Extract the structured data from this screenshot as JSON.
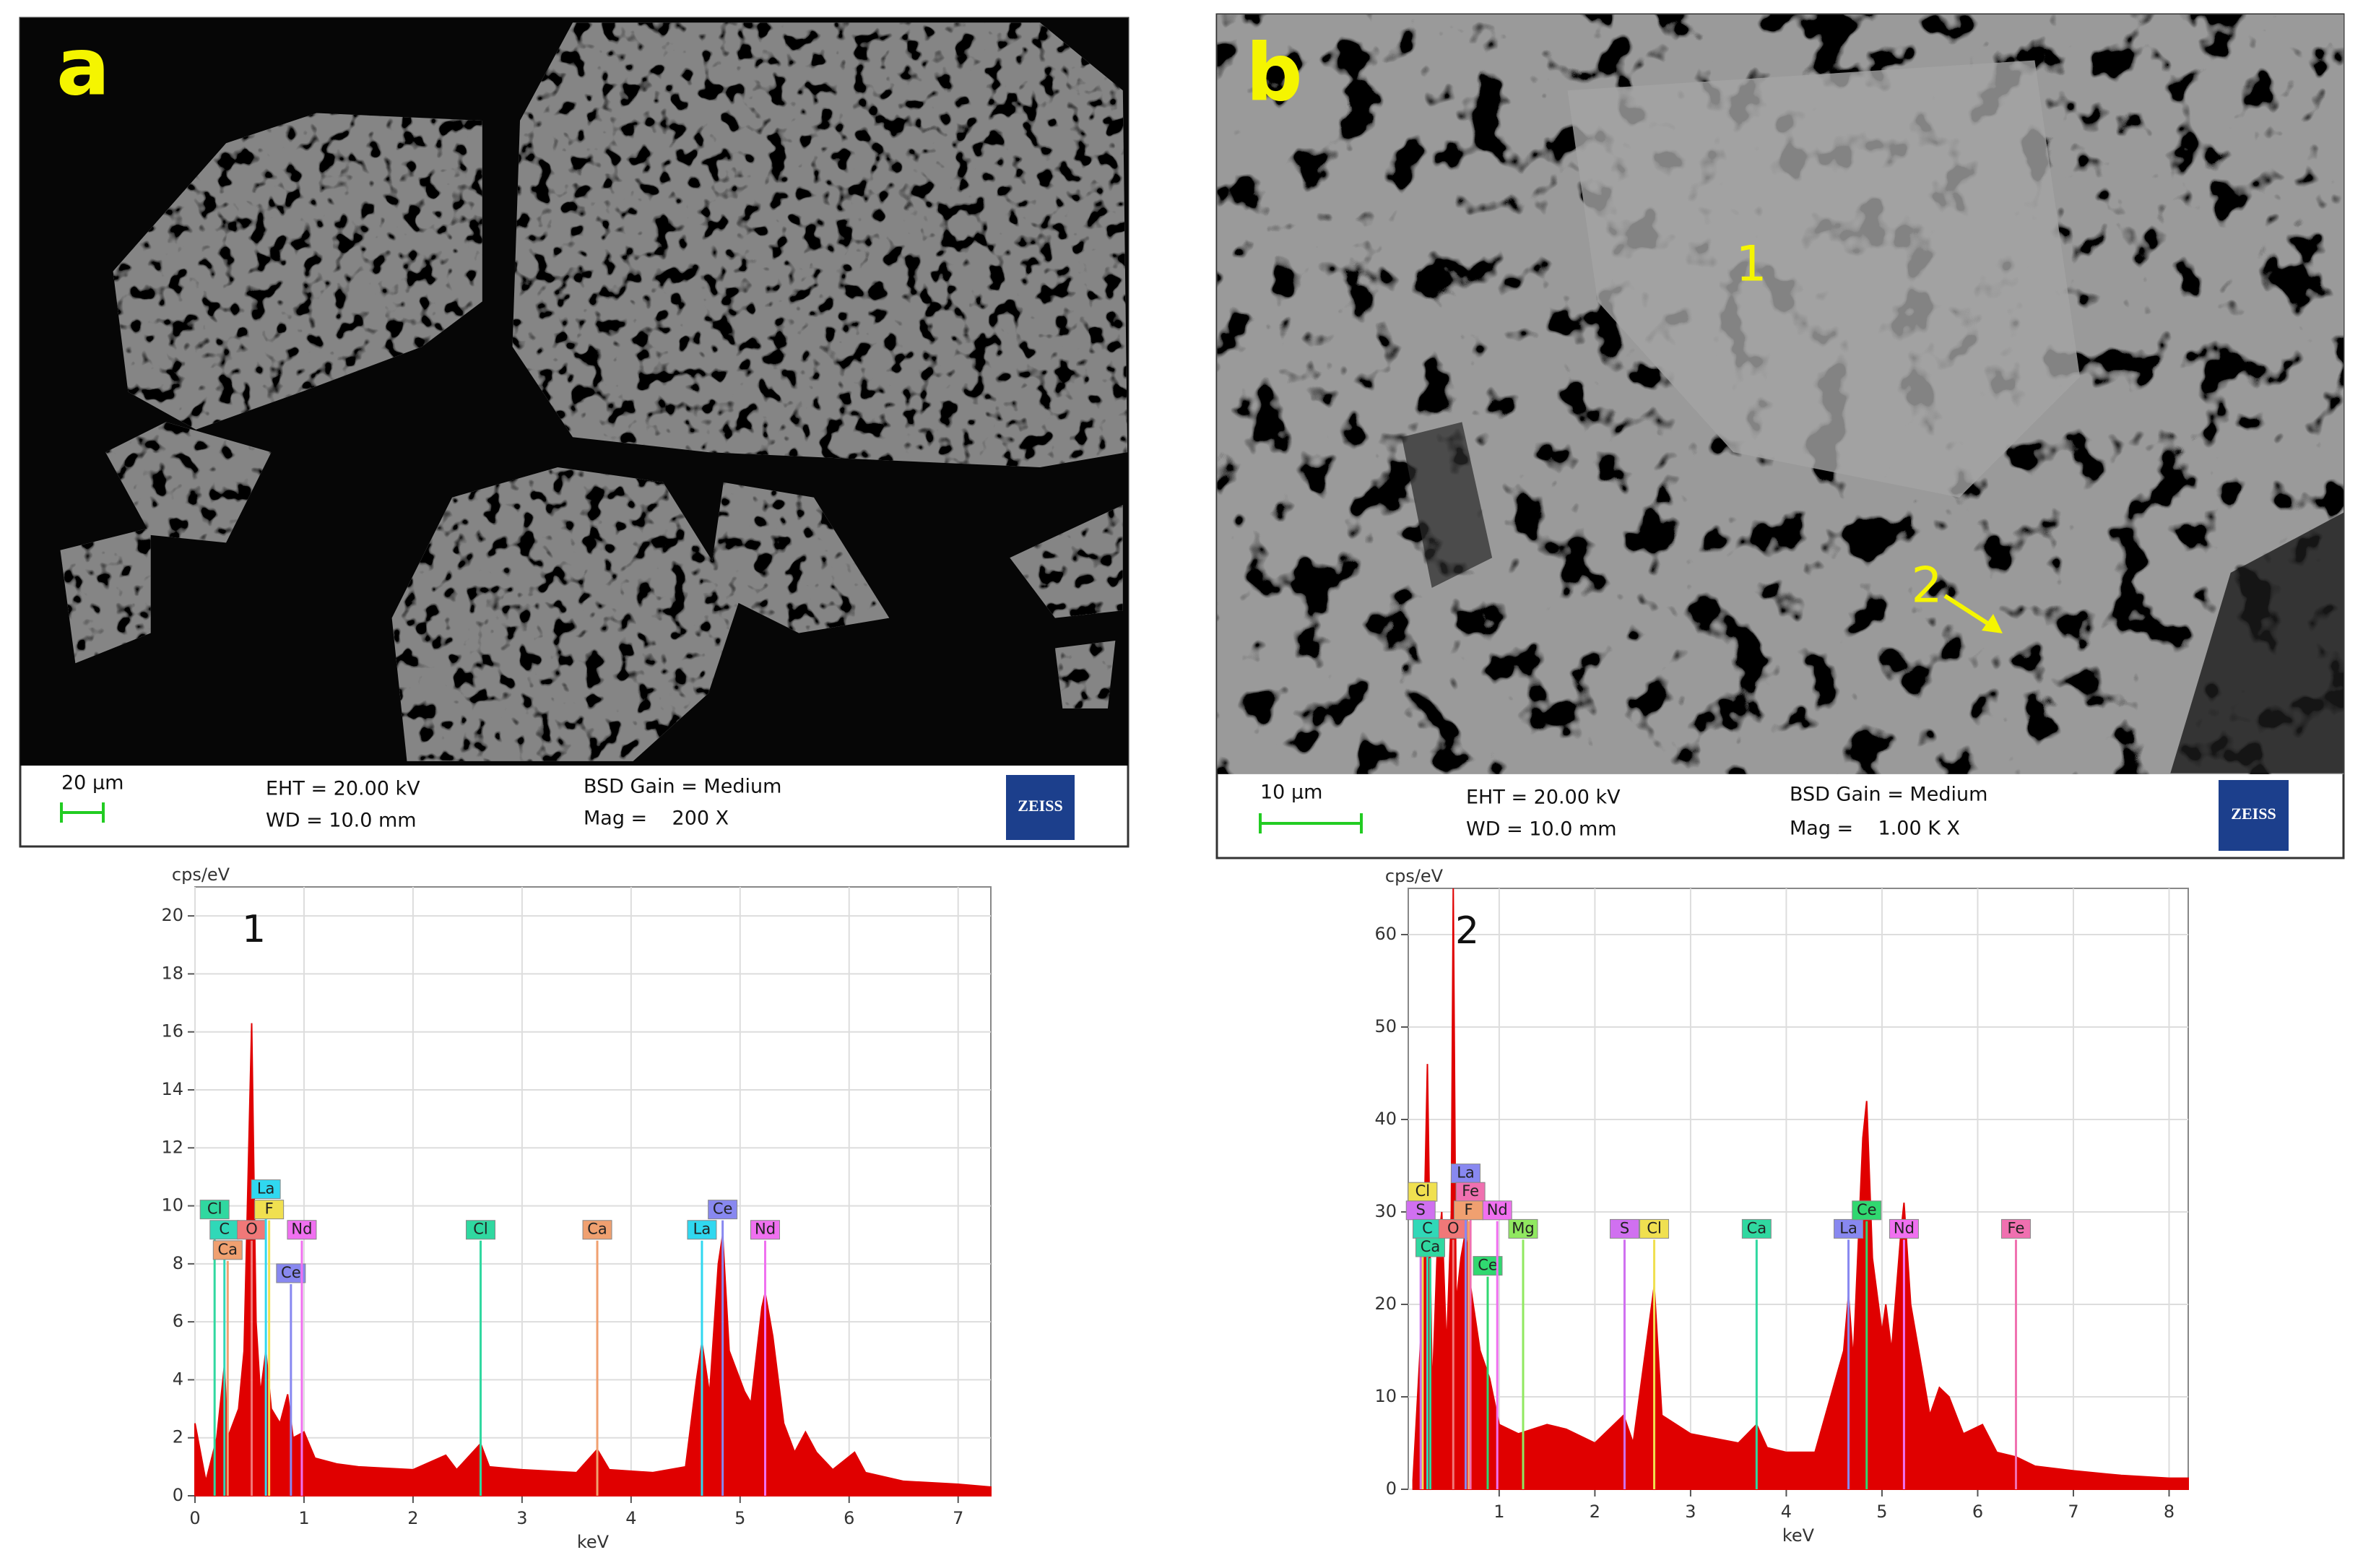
{
  "panels": [
    {
      "label": "a",
      "scale_bar": "20 µm",
      "eht": "EHT = 20.00 kV",
      "wd": "WD = 10.0 mm",
      "gain": "BSD Gain = Medium",
      "mag": "Mag =    200 X",
      "logo": "ZEISS"
    },
    {
      "label": "b",
      "scale_bar": "10 µm",
      "eht": "EHT = 20.00 kV",
      "wd": "WD = 10.0 mm",
      "gain": "BSD Gain = Medium",
      "mag": "Mag =    1.00 K X",
      "logo": "ZEISS",
      "points": [
        "1",
        "2"
      ]
    }
  ],
  "chart_data": [
    {
      "type": "area",
      "annotation": "1",
      "y_label": "cps/eV",
      "x_label": "keV",
      "color": "#e00000",
      "xlim": [
        0,
        7.3
      ],
      "xticks": [
        0,
        1,
        2,
        3,
        4,
        5,
        6,
        7
      ],
      "ylim": [
        0,
        21
      ],
      "yticks": [
        0,
        2,
        4,
        6,
        8,
        10,
        12,
        14,
        16,
        18,
        20
      ],
      "grid": true,
      "x": [
        0,
        0.1,
        0.2,
        0.27,
        0.3,
        0.4,
        0.45,
        0.52,
        0.56,
        0.6,
        0.65,
        0.7,
        0.78,
        0.85,
        0.9,
        1.0,
        1.1,
        1.3,
        1.5,
        2.0,
        2.3,
        2.4,
        2.62,
        2.7,
        3.0,
        3.5,
        3.69,
        3.8,
        4.2,
        4.5,
        4.6,
        4.65,
        4.72,
        4.8,
        4.84,
        4.9,
        5.0,
        5.04,
        5.1,
        5.2,
        5.23,
        5.3,
        5.4,
        5.5,
        5.6,
        5.7,
        5.85,
        6.05,
        6.15,
        6.5,
        7.0,
        7.3
      ],
      "values": [
        2.5,
        0.5,
        2,
        4.5,
        2,
        3,
        5,
        16.3,
        6,
        3.5,
        5,
        3,
        2.5,
        3.5,
        2,
        2.2,
        1.3,
        1.1,
        1.0,
        0.9,
        1.4,
        0.9,
        1.8,
        1.0,
        0.9,
        0.8,
        1.6,
        0.9,
        0.8,
        1.0,
        4.0,
        5.3,
        3.5,
        8.0,
        9.0,
        5.0,
        4.0,
        3.6,
        3.2,
        6.5,
        7.0,
        5.5,
        2.5,
        1.5,
        2.2,
        1.5,
        0.9,
        1.5,
        0.8,
        0.5,
        0.4,
        0.3
      ],
      "markers": [
        {
          "name": "Cl",
          "x": 0.18,
          "y": 9.5,
          "color": "#30d8a0"
        },
        {
          "name": "C",
          "x": 0.27,
          "y": 8.8,
          "color": "#30d8b8"
        },
        {
          "name": "Ca",
          "x": 0.3,
          "y": 8.1,
          "color": "#f0a070"
        },
        {
          "name": "O",
          "x": 0.52,
          "y": 8.8,
          "color": "#f07878"
        },
        {
          "name": "La",
          "x": 0.65,
          "y": 10.2,
          "color": "#30d8f0"
        },
        {
          "name": "F",
          "x": 0.68,
          "y": 9.5,
          "color": "#f0e050"
        },
        {
          "name": "Ce",
          "x": 0.88,
          "y": 7.3,
          "color": "#8888f0"
        },
        {
          "name": "Nd",
          "x": 0.98,
          "y": 8.8,
          "color": "#f070f0"
        },
        {
          "name": "Cl",
          "x": 2.62,
          "y": 8.8,
          "color": "#30d8a0"
        },
        {
          "name": "Ca",
          "x": 3.69,
          "y": 8.8,
          "color": "#f0a070"
        },
        {
          "name": "La",
          "x": 4.65,
          "y": 8.8,
          "color": "#30d8f0"
        },
        {
          "name": "Ce",
          "x": 4.84,
          "y": 9.5,
          "color": "#8888f0"
        },
        {
          "name": "Nd",
          "x": 5.23,
          "y": 8.8,
          "color": "#f070f0"
        }
      ]
    },
    {
      "type": "area",
      "annotation": "2",
      "y_label": "cps/eV",
      "x_label": "keV",
      "color": "#e00000",
      "xlim": [
        0.05,
        8.2
      ],
      "xticks": [
        1,
        2,
        3,
        4,
        5,
        6,
        7,
        8
      ],
      "ylim": [
        0,
        65
      ],
      "yticks": [
        0,
        10,
        20,
        30,
        40,
        50,
        60
      ],
      "grid": true,
      "x": [
        0.1,
        0.2,
        0.25,
        0.3,
        0.35,
        0.4,
        0.45,
        0.5,
        0.52,
        0.55,
        0.6,
        0.65,
        0.7,
        0.8,
        0.9,
        1.0,
        1.2,
        1.5,
        1.7,
        2.0,
        2.3,
        2.4,
        2.62,
        2.7,
        3.0,
        3.5,
        3.69,
        3.8,
        4.0,
        4.3,
        4.6,
        4.65,
        4.7,
        4.8,
        4.84,
        4.9,
        5.0,
        5.04,
        5.1,
        5.2,
        5.23,
        5.3,
        5.5,
        5.6,
        5.7,
        5.85,
        6.05,
        6.2,
        6.4,
        6.6,
        7.0,
        7.5,
        8.0,
        8.2
      ],
      "values": [
        1,
        20,
        46,
        10,
        25,
        30,
        15,
        30,
        65,
        20,
        25,
        28,
        22,
        15,
        12,
        7,
        6,
        7,
        6.5,
        5,
        8,
        5,
        22,
        8,
        6,
        5,
        7,
        4.5,
        4,
        4,
        15,
        21,
        14,
        38,
        42,
        25,
        17,
        20,
        15,
        28,
        31,
        20,
        8,
        11,
        10,
        6,
        7,
        4,
        3.5,
        2.5,
        2,
        1.5,
        1.2,
        1.2
      ],
      "markers": [
        {
          "name": "Cl",
          "x": 0.2,
          "y": 31,
          "color": "#f0e050"
        },
        {
          "name": "S",
          "x": 0.18,
          "y": 29,
          "color": "#d070f0"
        },
        {
          "name": "C",
          "x": 0.25,
          "y": 27,
          "color": "#30d8b8"
        },
        {
          "name": "Ca",
          "x": 0.28,
          "y": 25,
          "color": "#30d8a0"
        },
        {
          "name": "O",
          "x": 0.52,
          "y": 27,
          "color": "#f07878"
        },
        {
          "name": "La",
          "x": 0.65,
          "y": 33,
          "color": "#8888f0"
        },
        {
          "name": "Fe",
          "x": 0.7,
          "y": 31,
          "color": "#f070b0"
        },
        {
          "name": "F",
          "x": 0.68,
          "y": 29,
          "color": "#f0a070"
        },
        {
          "name": "Ce",
          "x": 0.88,
          "y": 23,
          "color": "#30d870"
        },
        {
          "name": "Nd",
          "x": 0.98,
          "y": 29,
          "color": "#f070f0"
        },
        {
          "name": "Mg",
          "x": 1.25,
          "y": 27,
          "color": "#90e860"
        },
        {
          "name": "S",
          "x": 2.31,
          "y": 27,
          "color": "#d070f0"
        },
        {
          "name": "Cl",
          "x": 2.62,
          "y": 27,
          "color": "#f0e050"
        },
        {
          "name": "Ca",
          "x": 3.69,
          "y": 27,
          "color": "#30d8a0"
        },
        {
          "name": "La",
          "x": 4.65,
          "y": 27,
          "color": "#8888f0"
        },
        {
          "name": "Ce",
          "x": 4.84,
          "y": 29,
          "color": "#30d870"
        },
        {
          "name": "Nd",
          "x": 5.23,
          "y": 27,
          "color": "#f070f0"
        },
        {
          "name": "Fe",
          "x": 6.4,
          "y": 27,
          "color": "#f070b0"
        }
      ]
    }
  ]
}
